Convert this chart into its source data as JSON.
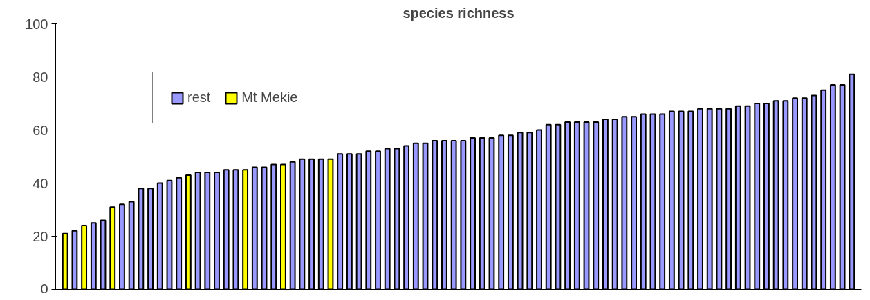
{
  "chart_data": {
    "type": "bar",
    "title": "species richness",
    "categories": [
      null,
      null,
      null,
      null,
      null,
      null,
      null,
      null,
      null,
      null,
      null,
      null,
      null,
      null,
      null,
      null,
      null,
      null,
      null,
      null,
      null,
      null,
      null,
      null,
      null,
      null,
      null,
      null,
      null,
      null,
      null,
      null,
      null,
      null,
      null,
      null,
      null,
      null,
      null,
      null,
      null,
      null,
      null,
      null,
      null,
      null,
      null,
      null,
      null,
      null,
      null,
      null,
      null,
      null,
      null,
      null,
      null,
      null,
      null,
      null,
      null,
      null,
      null,
      null,
      null,
      null,
      null,
      null,
      null,
      null,
      null,
      null,
      null,
      null,
      null,
      null,
      null,
      null,
      null,
      null,
      null,
      null,
      null,
      null
    ],
    "series": [
      {
        "name": "rest",
        "color": "#9999ff",
        "values": [
          null,
          22,
          null,
          25,
          26,
          null,
          32,
          33,
          38,
          38,
          40,
          41,
          42,
          null,
          44,
          44,
          44,
          45,
          45,
          null,
          46,
          46,
          47,
          null,
          48,
          49,
          49,
          49,
          null,
          51,
          51,
          51,
          52,
          52,
          53,
          53,
          54,
          55,
          55,
          56,
          56,
          56,
          56,
          57,
          57,
          57,
          58,
          58,
          59,
          59,
          60,
          62,
          62,
          63,
          63,
          63,
          63,
          64,
          64,
          65,
          65,
          66,
          66,
          66,
          67,
          67,
          67,
          68,
          68,
          68,
          68,
          69,
          69,
          70,
          70,
          71,
          71,
          72,
          72,
          73,
          75,
          77,
          77,
          81
        ]
      },
      {
        "name": "Mt Mekie",
        "color": "#ffff00",
        "values": [
          21,
          null,
          24,
          null,
          null,
          31,
          null,
          null,
          null,
          null,
          null,
          null,
          null,
          43,
          null,
          null,
          null,
          null,
          null,
          45,
          null,
          null,
          null,
          47,
          null,
          null,
          null,
          null,
          49,
          null,
          null,
          null,
          null,
          null,
          null,
          null,
          null,
          null,
          null,
          null,
          null,
          null,
          null,
          null,
          null,
          null,
          null,
          null,
          null,
          null,
          null,
          null,
          null,
          null,
          null,
          null,
          null,
          null,
          null,
          null,
          null,
          null,
          null,
          null,
          null,
          null,
          null,
          null,
          null,
          null,
          null,
          null,
          null,
          null,
          null,
          null,
          null,
          null,
          null,
          null,
          null,
          null,
          null,
          null
        ]
      }
    ],
    "ylim": [
      0,
      100
    ],
    "yticks": [
      0,
      20,
      40,
      60,
      80,
      100
    ],
    "tick_labels": "y",
    "grid": false,
    "legend": "top left"
  }
}
